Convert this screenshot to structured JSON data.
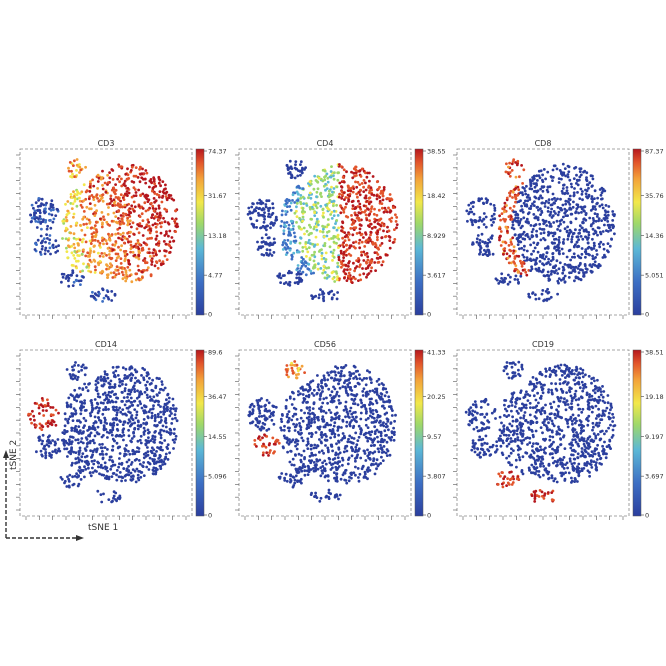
{
  "figure": {
    "axis_x_label": "tSNE 1",
    "axis_y_label": "tSNE 2"
  },
  "chart_data": [
    {
      "type": "scatter",
      "title": "CD3",
      "colorbar_ticks": [
        "74.37",
        "31.67",
        "13.18",
        "4.77",
        "0"
      ],
      "series": [
        {
          "values": []
        }
      ],
      "pattern": "cd3"
    },
    {
      "type": "scatter",
      "title": "CD4",
      "colorbar_ticks": [
        "38.55",
        "18.42",
        "8.929",
        "3.617",
        "0"
      ],
      "series": [
        {
          "values": []
        }
      ],
      "pattern": "cd4"
    },
    {
      "type": "scatter",
      "title": "CD8",
      "colorbar_ticks": [
        "87.37",
        "35.76",
        "14.36",
        "5.051",
        "0"
      ],
      "series": [
        {
          "values": []
        }
      ],
      "pattern": "cd8"
    },
    {
      "type": "scatter",
      "title": "CD14",
      "colorbar_ticks": [
        "89.6",
        "36.47",
        "14.55",
        "5.096",
        "0"
      ],
      "series": [
        {
          "values": []
        }
      ],
      "pattern": "cd14"
    },
    {
      "type": "scatter",
      "title": "CD56",
      "colorbar_ticks": [
        "41.33",
        "20.25",
        "9.57",
        "3.807",
        "0"
      ],
      "series": [
        {
          "values": []
        }
      ],
      "pattern": "cd56"
    },
    {
      "type": "scatter",
      "title": "CD19",
      "colorbar_ticks": [
        "38.51",
        "19.18",
        "9.197",
        "3.697",
        "0"
      ],
      "series": [
        {
          "values": []
        }
      ],
      "pattern": "cd19"
    }
  ],
  "colorscale": [
    "#2b3f9e",
    "#3d6fc4",
    "#5cb8d6",
    "#9ed86a",
    "#f2e84a",
    "#f3a23a",
    "#e2542b",
    "#b5171d"
  ]
}
